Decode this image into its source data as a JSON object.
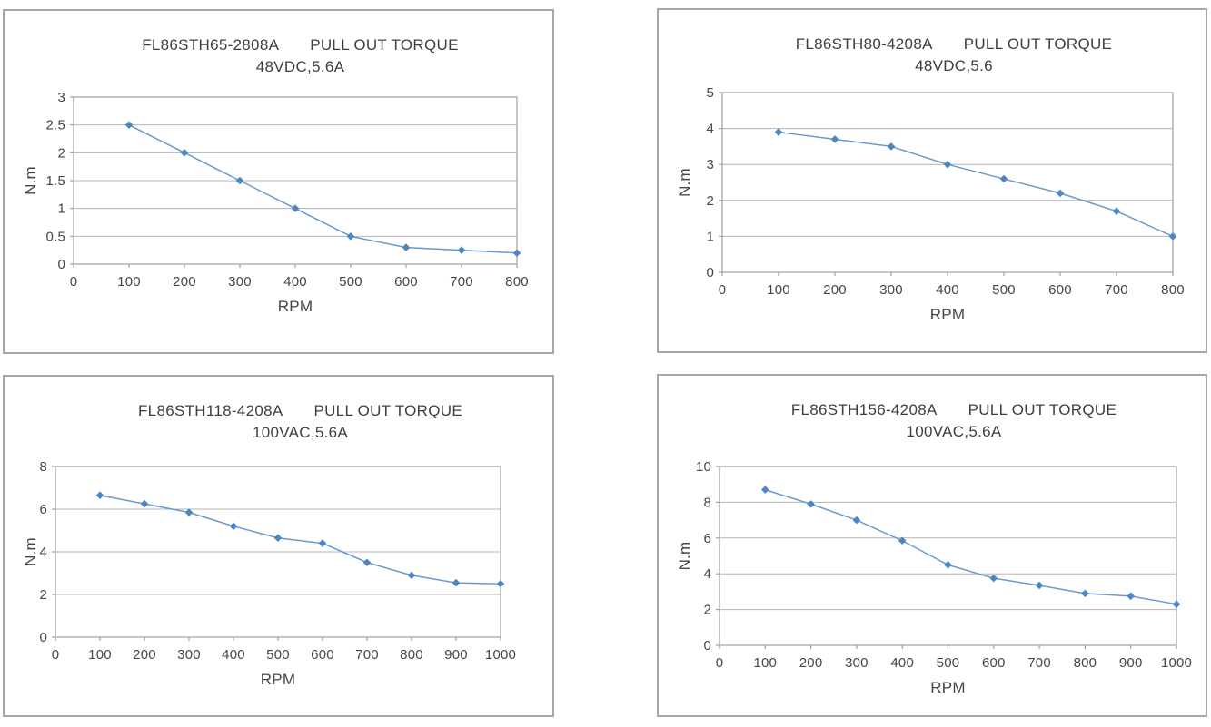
{
  "colors": {
    "line": "#6b9ace",
    "marker": "#4e86c0",
    "grid": "#b5b5b5",
    "axis": "#a0a0a0",
    "panel_border": "#a6a6a6",
    "text": "#454545"
  },
  "chart_data": [
    {
      "type": "line",
      "panel": "top-left",
      "title_model": "FL86STH65-2808A",
      "title_label": "PULL OUT TORQUE",
      "subtitle": "48VDC,5.6A",
      "xlabel": "RPM",
      "ylabel": "N.m",
      "x": [
        100,
        200,
        300,
        400,
        500,
        600,
        700,
        800
      ],
      "values": [
        2.5,
        2.0,
        1.5,
        1.0,
        0.5,
        0.3,
        0.25,
        0.2
      ],
      "xlim": [
        0,
        800
      ],
      "ylim": [
        0,
        3
      ],
      "x_ticks": [
        "0",
        "100",
        "200",
        "300",
        "400",
        "500",
        "600",
        "700",
        "800"
      ],
      "y_ticks": [
        "0",
        "0.5",
        "1",
        "1.5",
        "2",
        "2.5",
        "3"
      ],
      "grid": "horizontal-only",
      "legend": "none"
    },
    {
      "type": "line",
      "panel": "top-right",
      "title_model": "FL86STH80-4208A",
      "title_label": "PULL OUT TORQUE",
      "subtitle": "48VDC,5.6",
      "xlabel": "RPM",
      "ylabel": "N.m",
      "x": [
        100,
        200,
        300,
        400,
        500,
        600,
        700,
        800
      ],
      "values": [
        3.9,
        3.7,
        3.5,
        3.0,
        2.6,
        2.2,
        1.7,
        1.0
      ],
      "xlim": [
        0,
        800
      ],
      "ylim": [
        0,
        5
      ],
      "x_ticks": [
        "0",
        "100",
        "200",
        "300",
        "400",
        "500",
        "600",
        "700",
        "800"
      ],
      "y_ticks": [
        "0",
        "1",
        "2",
        "3",
        "4",
        "5"
      ],
      "grid": "horizontal-only",
      "legend": "none"
    },
    {
      "type": "line",
      "panel": "bottom-left",
      "title_model": "FL86STH118-4208A",
      "title_label": "PULL OUT TORQUE",
      "subtitle": "100VAC,5.6A",
      "xlabel": "RPM",
      "ylabel": "N.m",
      "x": [
        100,
        200,
        300,
        400,
        500,
        600,
        700,
        800,
        900,
        1000
      ],
      "values": [
        6.65,
        6.25,
        5.85,
        5.2,
        4.65,
        4.4,
        3.5,
        2.9,
        2.55,
        2.5
      ],
      "xlim": [
        0,
        1000
      ],
      "ylim": [
        0,
        8
      ],
      "x_ticks": [
        "0",
        "100",
        "200",
        "300",
        "400",
        "500",
        "600",
        "700",
        "800",
        "900",
        "1000"
      ],
      "y_ticks": [
        "0",
        "2",
        "4",
        "6",
        "8"
      ],
      "grid": "horizontal-only",
      "legend": "none"
    },
    {
      "type": "line",
      "panel": "bottom-right",
      "title_model": "FL86STH156-4208A",
      "title_label": "PULL OUT TORQUE",
      "subtitle": "100VAC,5.6A",
      "xlabel": "RPM",
      "ylabel": "N.m",
      "x": [
        100,
        200,
        300,
        400,
        500,
        600,
        700,
        800,
        900,
        1000
      ],
      "values": [
        8.7,
        7.9,
        7.0,
        5.85,
        4.5,
        3.75,
        3.35,
        2.9,
        2.75,
        2.3
      ],
      "xlim": [
        0,
        1000
      ],
      "ylim": [
        0,
        10
      ],
      "x_ticks": [
        "0",
        "100",
        "200",
        "300",
        "400",
        "500",
        "600",
        "700",
        "800",
        "900",
        "1000"
      ],
      "y_ticks": [
        "0",
        "2",
        "4",
        "6",
        "8",
        "10"
      ],
      "grid": "horizontal-only",
      "legend": "none"
    }
  ]
}
